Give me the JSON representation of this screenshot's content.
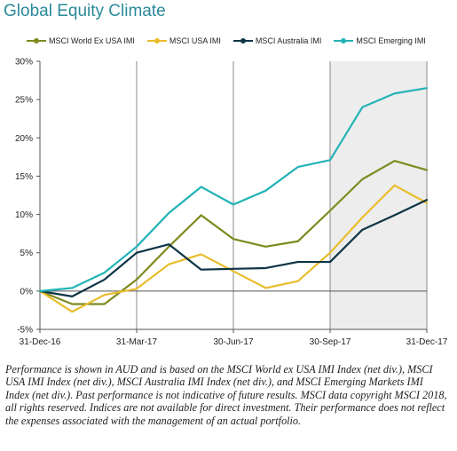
{
  "title": "Global Equity Climate",
  "caption": "Performance is shown in AUD and is based on the MSCI World ex USA IMI Index (net div.), MSCI USA IMI Index (net div.), MSCI Australia IMI Index (net div.), and MSCI Emerging Markets IMI Index (net div.). Past performance is not indicative of future results. MSCI data copyright MSCI 2018, all rights reserved. Indices are not available for direct investment. Their performance does not reflect the expenses associated with the management of an actual portfolio.",
  "chart_data": {
    "type": "line",
    "title": "Global Equity Climate",
    "xlabel": "",
    "ylabel": "",
    "x_tick_labels": [
      "31-Dec-16",
      "31-Mar-17",
      "30-Jun-17",
      "30-Sep-17",
      "31-Dec-17"
    ],
    "x_tick_positions": [
      0,
      3,
      6,
      9,
      12
    ],
    "x": [
      0,
      1,
      2,
      3,
      4,
      5,
      6,
      7,
      8,
      9,
      10,
      11,
      12
    ],
    "y_tick_labels": [
      "-5%",
      "0%",
      "5%",
      "10%",
      "15%",
      "20%",
      "25%",
      "30%"
    ],
    "ylim": [
      -5,
      30
    ],
    "y_ticks": [
      -5,
      0,
      5,
      10,
      15,
      20,
      25,
      30
    ],
    "grid": "vertical lines at quarter ends",
    "shaded_region": [
      9,
      12
    ],
    "legend_position": "top",
    "series": [
      {
        "name": "MSCI World Ex USA IMI",
        "color": "#7e8a1e",
        "values": [
          0,
          -1.7,
          -1.7,
          1.5,
          5.8,
          9.9,
          6.8,
          5.8,
          6.5,
          10.5,
          14.6,
          17.0,
          15.8
        ]
      },
      {
        "name": "MSCI USA IMI",
        "color": "#e9bd2d",
        "values": [
          0,
          -2.7,
          -0.5,
          0.3,
          3.5,
          4.8,
          2.6,
          0.4,
          1.3,
          5.0,
          9.6,
          13.8,
          11.5
        ]
      },
      {
        "name": "MSCI Australia IMI",
        "color": "#0d3446",
        "values": [
          0,
          -0.7,
          1.5,
          5.0,
          6.1,
          2.8,
          2.9,
          3.0,
          3.8,
          3.8,
          8.0,
          9.9,
          11.9
        ]
      },
      {
        "name": "MSCI Emerging IMI",
        "color": "#23b3b6",
        "values": [
          0,
          0.4,
          2.4,
          5.8,
          10.2,
          13.6,
          11.3,
          13.1,
          16.2,
          17.1,
          24.0,
          25.8,
          26.5
        ]
      }
    ]
  }
}
